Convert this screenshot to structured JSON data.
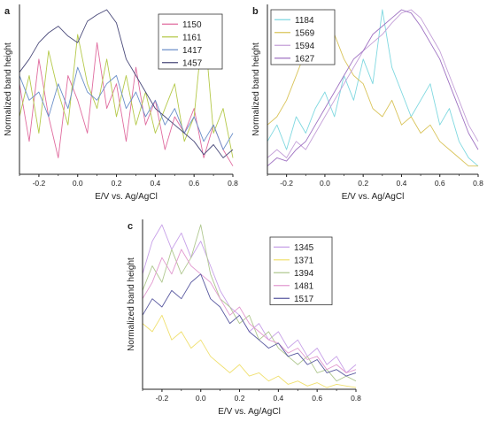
{
  "figure": {
    "chart_data": [
      {
        "panel_label": "a",
        "type": "line",
        "xlabel": "E/V vs. Ag/AgCl",
        "ylabel": "Normalized band height",
        "xlim": [
          -0.3,
          0.8
        ],
        "ylim": [
          0,
          1
        ],
        "xticks": [
          "-0.2",
          "0.0",
          "0.2",
          "0.4",
          "0.6",
          "0.8"
        ],
        "legend_position": "top-right",
        "grid": false,
        "series": [
          {
            "name": "1150",
            "color": "#e06c9f",
            "x": [
              -0.3,
              -0.25,
              -0.2,
              -0.15,
              -0.1,
              -0.05,
              0.0,
              0.05,
              0.1,
              0.15,
              0.2,
              0.25,
              0.3,
              0.35,
              0.4,
              0.45,
              0.5,
              0.55,
              0.6,
              0.65,
              0.7,
              0.75,
              0.8
            ],
            "y": [
              0.55,
              0.2,
              0.7,
              0.35,
              0.1,
              0.6,
              0.45,
              0.25,
              0.8,
              0.4,
              0.55,
              0.2,
              0.65,
              0.3,
              0.45,
              0.15,
              0.35,
              0.25,
              0.4,
              0.1,
              0.3,
              0.15,
              0.05
            ]
          },
          {
            "name": "1161",
            "color": "#b5c94a",
            "x": [
              -0.3,
              -0.25,
              -0.2,
              -0.15,
              -0.1,
              -0.05,
              0.0,
              0.05,
              0.1,
              0.15,
              0.2,
              0.25,
              0.3,
              0.35,
              0.4,
              0.45,
              0.5,
              0.55,
              0.6,
              0.65,
              0.7,
              0.75,
              0.8
            ],
            "y": [
              0.35,
              0.6,
              0.25,
              0.75,
              0.5,
              0.3,
              0.85,
              0.55,
              0.4,
              0.7,
              0.35,
              0.6,
              0.3,
              0.5,
              0.25,
              0.4,
              0.55,
              0.2,
              0.35,
              0.95,
              0.25,
              0.4,
              0.1
            ]
          },
          {
            "name": "1417",
            "color": "#6b8fc9",
            "x": [
              -0.3,
              -0.25,
              -0.2,
              -0.15,
              -0.1,
              -0.05,
              0.0,
              0.05,
              0.1,
              0.15,
              0.2,
              0.25,
              0.3,
              0.35,
              0.4,
              0.45,
              0.5,
              0.55,
              0.6,
              0.65,
              0.7,
              0.75,
              0.8
            ],
            "y": [
              0.6,
              0.45,
              0.5,
              0.35,
              0.55,
              0.4,
              0.65,
              0.5,
              0.45,
              0.55,
              0.6,
              0.4,
              0.5,
              0.35,
              0.45,
              0.3,
              0.4,
              0.25,
              0.35,
              0.2,
              0.3,
              0.15,
              0.25
            ]
          },
          {
            "name": "1457",
            "color": "#4a4a7a",
            "x": [
              -0.3,
              -0.25,
              -0.2,
              -0.15,
              -0.1,
              -0.05,
              0.0,
              0.05,
              0.1,
              0.15,
              0.2,
              0.25,
              0.3,
              0.35,
              0.4,
              0.45,
              0.5,
              0.55,
              0.6,
              0.65,
              0.7,
              0.75,
              0.8
            ],
            "y": [
              0.62,
              0.7,
              0.8,
              0.86,
              0.9,
              0.84,
              0.8,
              0.93,
              0.97,
              1.0,
              0.92,
              0.7,
              0.6,
              0.5,
              0.4,
              0.35,
              0.3,
              0.25,
              0.2,
              0.12,
              0.18,
              0.1,
              0.15
            ]
          }
        ]
      },
      {
        "panel_label": "b",
        "type": "line",
        "xlabel": "E/V vs. Ag/AgCl",
        "ylabel": "Normalized band height",
        "xlim": [
          -0.3,
          0.8
        ],
        "ylim": [
          0,
          1
        ],
        "xticks": [
          "-0.2",
          "0.0",
          "0.2",
          "0.4",
          "0.6",
          "0.8"
        ],
        "legend_position": "top-left",
        "grid": false,
        "series": [
          {
            "name": "1184",
            "color": "#7fd8e0",
            "x": [
              -0.3,
              -0.25,
              -0.2,
              -0.15,
              -0.1,
              -0.05,
              0.0,
              0.05,
              0.1,
              0.15,
              0.2,
              0.25,
              0.3,
              0.35,
              0.4,
              0.45,
              0.5,
              0.55,
              0.6,
              0.65,
              0.7,
              0.75,
              0.8
            ],
            "y": [
              0.2,
              0.3,
              0.15,
              0.35,
              0.25,
              0.4,
              0.5,
              0.35,
              0.6,
              0.45,
              0.7,
              0.55,
              1.0,
              0.65,
              0.5,
              0.35,
              0.45,
              0.55,
              0.3,
              0.4,
              0.2,
              0.1,
              0.05
            ]
          },
          {
            "name": "1569",
            "color": "#d9c45a",
            "x": [
              -0.3,
              -0.25,
              -0.2,
              -0.15,
              -0.1,
              -0.05,
              0.0,
              0.05,
              0.1,
              0.15,
              0.2,
              0.25,
              0.3,
              0.35,
              0.4,
              0.45,
              0.5,
              0.55,
              0.6,
              0.65,
              0.7,
              0.75,
              0.8
            ],
            "y": [
              0.3,
              0.35,
              0.45,
              0.6,
              0.75,
              0.9,
              1.0,
              0.85,
              0.7,
              0.6,
              0.55,
              0.4,
              0.35,
              0.45,
              0.3,
              0.35,
              0.25,
              0.3,
              0.2,
              0.15,
              0.1,
              0.05,
              0.05
            ]
          },
          {
            "name": "1594",
            "color": "#c4a0d8",
            "x": [
              -0.3,
              -0.25,
              -0.2,
              -0.15,
              -0.1,
              -0.05,
              0.0,
              0.05,
              0.1,
              0.15,
              0.2,
              0.25,
              0.3,
              0.35,
              0.4,
              0.45,
              0.5,
              0.55,
              0.6,
              0.65,
              0.7,
              0.75,
              0.8
            ],
            "y": [
              0.1,
              0.15,
              0.1,
              0.2,
              0.15,
              0.25,
              0.35,
              0.45,
              0.55,
              0.65,
              0.75,
              0.8,
              0.85,
              0.92,
              0.98,
              1.0,
              0.95,
              0.85,
              0.75,
              0.6,
              0.45,
              0.3,
              0.2
            ]
          },
          {
            "name": "1627",
            "color": "#9f72c2",
            "x": [
              -0.3,
              -0.25,
              -0.2,
              -0.15,
              -0.1,
              -0.05,
              0.0,
              0.05,
              0.1,
              0.15,
              0.2,
              0.25,
              0.3,
              0.35,
              0.4,
              0.45,
              0.5,
              0.55,
              0.6,
              0.65,
              0.7,
              0.75,
              0.8
            ],
            "y": [
              0.05,
              0.1,
              0.08,
              0.15,
              0.2,
              0.3,
              0.4,
              0.5,
              0.6,
              0.7,
              0.75,
              0.85,
              0.9,
              0.95,
              1.0,
              0.98,
              0.9,
              0.8,
              0.7,
              0.55,
              0.4,
              0.25,
              0.15
            ]
          }
        ]
      },
      {
        "panel_label": "c",
        "type": "line",
        "xlabel": "E/V vs. Ag/AgCl",
        "ylabel": "Normalized band height",
        "xlim": [
          -0.3,
          0.8
        ],
        "ylim": [
          0,
          1
        ],
        "xticks": [
          "-0.2",
          "0.0",
          "0.2",
          "0.4",
          "0.6",
          "0.8"
        ],
        "legend_position": "top-right",
        "grid": false,
        "series": [
          {
            "name": "1345",
            "color": "#c7a0e8",
            "x": [
              -0.3,
              -0.25,
              -0.2,
              -0.15,
              -0.1,
              -0.05,
              0.0,
              0.05,
              0.1,
              0.15,
              0.2,
              0.25,
              0.3,
              0.35,
              0.4,
              0.45,
              0.5,
              0.55,
              0.6,
              0.65,
              0.7,
              0.75,
              0.8
            ],
            "y": [
              0.7,
              0.9,
              1.0,
              0.85,
              0.95,
              0.8,
              0.9,
              0.75,
              0.6,
              0.5,
              0.45,
              0.35,
              0.4,
              0.3,
              0.35,
              0.25,
              0.3,
              0.2,
              0.25,
              0.15,
              0.2,
              0.1,
              0.15
            ]
          },
          {
            "name": "1371",
            "color": "#f0e070",
            "x": [
              -0.3,
              -0.25,
              -0.2,
              -0.15,
              -0.1,
              -0.05,
              0.0,
              0.05,
              0.1,
              0.15,
              0.2,
              0.25,
              0.3,
              0.35,
              0.4,
              0.45,
              0.5,
              0.55,
              0.6,
              0.65,
              0.7,
              0.75,
              0.8
            ],
            "y": [
              0.4,
              0.35,
              0.45,
              0.3,
              0.35,
              0.25,
              0.3,
              0.2,
              0.15,
              0.1,
              0.15,
              0.08,
              0.1,
              0.05,
              0.08,
              0.03,
              0.05,
              0.02,
              0.04,
              0.01,
              0.03,
              0.02,
              0.01
            ]
          },
          {
            "name": "1394",
            "color": "#b0c890",
            "x": [
              -0.3,
              -0.25,
              -0.2,
              -0.15,
              -0.1,
              -0.05,
              0.0,
              0.05,
              0.1,
              0.15,
              0.2,
              0.25,
              0.3,
              0.35,
              0.4,
              0.45,
              0.5,
              0.55,
              0.6,
              0.65,
              0.7,
              0.75,
              0.8
            ],
            "y": [
              0.6,
              0.75,
              0.65,
              0.85,
              0.7,
              0.8,
              1.0,
              0.7,
              0.55,
              0.5,
              0.4,
              0.45,
              0.3,
              0.35,
              0.25,
              0.2,
              0.15,
              0.2,
              0.1,
              0.12,
              0.05,
              0.08,
              0.05
            ]
          },
          {
            "name": "1481",
            "color": "#e29ad0",
            "x": [
              -0.3,
              -0.25,
              -0.2,
              -0.15,
              -0.1,
              -0.05,
              0.0,
              0.05,
              0.1,
              0.15,
              0.2,
              0.25,
              0.3,
              0.35,
              0.4,
              0.45,
              0.5,
              0.55,
              0.6,
              0.65,
              0.7,
              0.75,
              0.8
            ],
            "y": [
              0.55,
              0.65,
              0.8,
              0.7,
              0.85,
              0.75,
              0.7,
              0.65,
              0.55,
              0.45,
              0.5,
              0.4,
              0.35,
              0.3,
              0.28,
              0.22,
              0.25,
              0.18,
              0.2,
              0.12,
              0.15,
              0.1,
              0.12
            ]
          },
          {
            "name": "1517",
            "color": "#5a5aa0",
            "x": [
              -0.3,
              -0.25,
              -0.2,
              -0.15,
              -0.1,
              -0.05,
              0.0,
              0.05,
              0.1,
              0.15,
              0.2,
              0.25,
              0.3,
              0.35,
              0.4,
              0.45,
              0.5,
              0.55,
              0.6,
              0.65,
              0.7,
              0.75,
              0.8
            ],
            "y": [
              0.45,
              0.55,
              0.5,
              0.6,
              0.55,
              0.65,
              0.7,
              0.55,
              0.5,
              0.4,
              0.45,
              0.35,
              0.3,
              0.25,
              0.28,
              0.2,
              0.22,
              0.15,
              0.18,
              0.1,
              0.12,
              0.08,
              0.1
            ]
          }
        ]
      }
    ]
  }
}
